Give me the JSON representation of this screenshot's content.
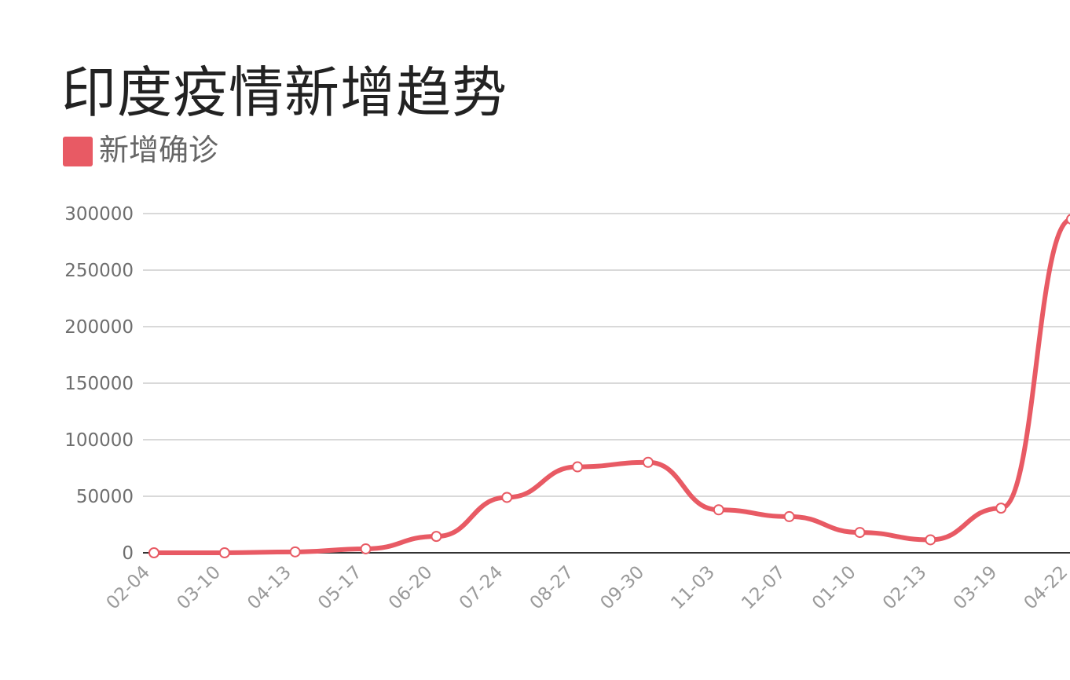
{
  "chart_data": {
    "type": "line",
    "title": "印度疫情新增趋势",
    "legend": {
      "placement": "top-left"
    },
    "x": [
      "02-04",
      "03-10",
      "04-13",
      "05-17",
      "06-20",
      "07-24",
      "08-27",
      "09-30",
      "11-03",
      "12-07",
      "01-10",
      "02-13",
      "03-19",
      "04-22"
    ],
    "ylim": [
      0,
      300000
    ],
    "yticks": [
      0,
      50000,
      100000,
      150000,
      200000,
      250000,
      300000
    ],
    "grid": true,
    "series": [
      {
        "name": "新增确诊",
        "color": "#e85a64",
        "values": [
          0,
          0,
          800,
          3500,
          14500,
          49000,
          76000,
          80000,
          38000,
          32000,
          18000,
          11500,
          39500,
          295000
        ]
      }
    ]
  }
}
